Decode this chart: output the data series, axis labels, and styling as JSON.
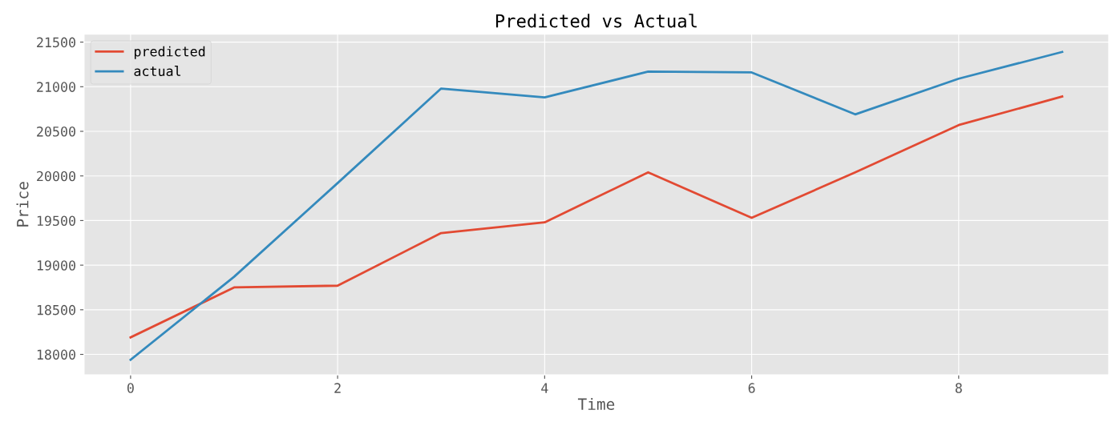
{
  "chart_data": {
    "type": "line",
    "title": "Predicted vs Actual",
    "xlabel": "Time",
    "ylabel": "Price",
    "x": [
      0,
      1,
      2,
      3,
      4,
      5,
      6,
      7,
      8,
      9
    ],
    "series": [
      {
        "name": "predicted",
        "color": "#e24a33",
        "values": [
          18190,
          18750,
          18770,
          19360,
          19480,
          20040,
          19530,
          20040,
          20570,
          20890
        ]
      },
      {
        "name": "actual",
        "color": "#348abd",
        "values": [
          17940,
          18870,
          19920,
          20980,
          20880,
          21170,
          21160,
          20690,
          21090,
          21390
        ]
      }
    ],
    "xlim": [
      -0.45,
      9.45
    ],
    "xticks": [
      0,
      2,
      4,
      6,
      8
    ],
    "ylim": [
      17770,
      21590
    ],
    "yticks": [
      18000,
      18500,
      19000,
      19500,
      20000,
      20500,
      21000,
      21500
    ],
    "grid": true,
    "legend": "top left",
    "marker": "none",
    "line_style": "solid"
  }
}
